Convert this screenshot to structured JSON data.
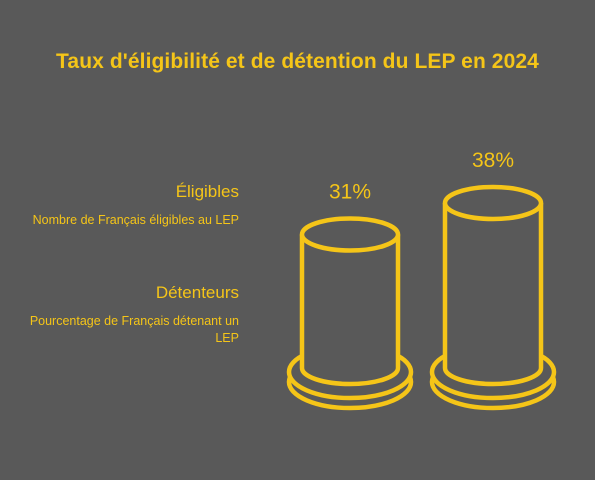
{
  "chart_data": {
    "type": "bar",
    "title": "Taux d'éligibilité et de détention du LEP en 2024",
    "categories": [
      "Éligibles",
      "Détenteurs"
    ],
    "values": [
      31,
      38
    ],
    "value_labels": [
      "31%",
      "38%"
    ],
    "unit": "%",
    "legend": [
      {
        "name": "Éligibles",
        "description": "Nombre de Français éligibles au LEP"
      },
      {
        "name": "Détenteurs",
        "description": "Pourcentage de Français détenant un LEP"
      }
    ],
    "legend_position": "left",
    "grid": false
  },
  "colors": {
    "background": "#595959",
    "accent": "#f5c518"
  }
}
